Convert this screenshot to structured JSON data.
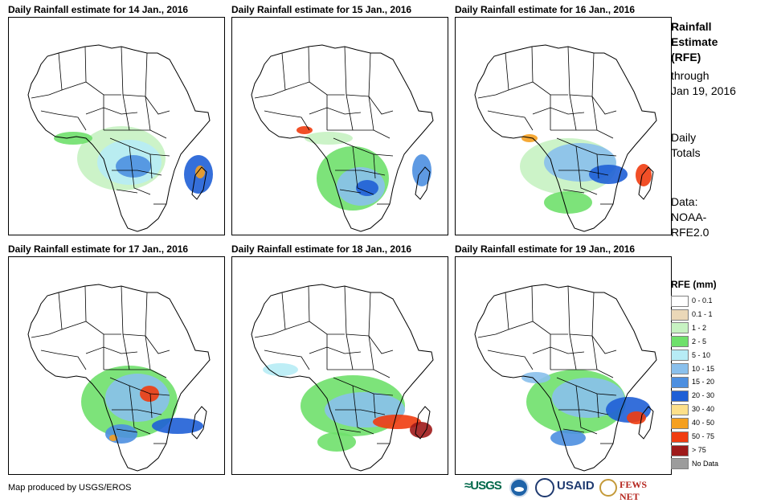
{
  "panels": [
    {
      "title": "Daily Rainfall estimate for 14 Jan., 2016",
      "date": "14 Jan"
    },
    {
      "title": "Daily Rainfall estimate for 15 Jan., 2016",
      "date": "15 Jan"
    },
    {
      "title": "Daily Rainfall estimate for 16 Jan., 2016",
      "date": "16 Jan"
    },
    {
      "title": "Daily Rainfall estimate for 17 Jan., 2016",
      "date": "17 Jan"
    },
    {
      "title": "Daily Rainfall estimate for 18 Jan., 2016",
      "date": "18 Jan"
    },
    {
      "title": "Daily Rainfall estimate for 19 Jan., 2016",
      "date": "19 Jan"
    }
  ],
  "legend_info": {
    "title_line1": "Rainfall",
    "title_line2": "Estimate",
    "title_line3": "(RFE)",
    "through_label": "through",
    "through_date": "Jan 19, 2016",
    "totals_line1": "Daily",
    "totals_line2": "Totals",
    "data_line1": "Data:",
    "data_line2": "NOAA-",
    "data_line3": "RFE2.0"
  },
  "legend": {
    "title": "RFE (mm)",
    "classes": [
      {
        "label": "0 - 0.1",
        "color": "#ffffff"
      },
      {
        "label": "0.1 - 1",
        "color": "#ebd8b8"
      },
      {
        "label": "1 - 2",
        "color": "#c7f2c2"
      },
      {
        "label": "2 - 5",
        "color": "#6fe06b"
      },
      {
        "label": "5 - 10",
        "color": "#b7ecf5"
      },
      {
        "label": "10 - 15",
        "color": "#8ac0ec"
      },
      {
        "label": "15 - 20",
        "color": "#4d8fe0"
      },
      {
        "label": "20 - 30",
        "color": "#1f5fd6"
      },
      {
        "label": "30 - 40",
        "color": "#fde08a"
      },
      {
        "label": "40 - 50",
        "color": "#f5a020"
      },
      {
        "label": "50 - 75",
        "color": "#f03c10"
      },
      {
        "label": "> 75",
        "color": "#9e1a1a"
      },
      {
        "label": "No Data",
        "color": "#9c9c9c"
      }
    ]
  },
  "footer": {
    "credit": "Map produced by USGS/EROS",
    "logo_usgs": "≈USGS",
    "logo_usaid": "USAID",
    "logo_fews": "FEWS NET"
  }
}
